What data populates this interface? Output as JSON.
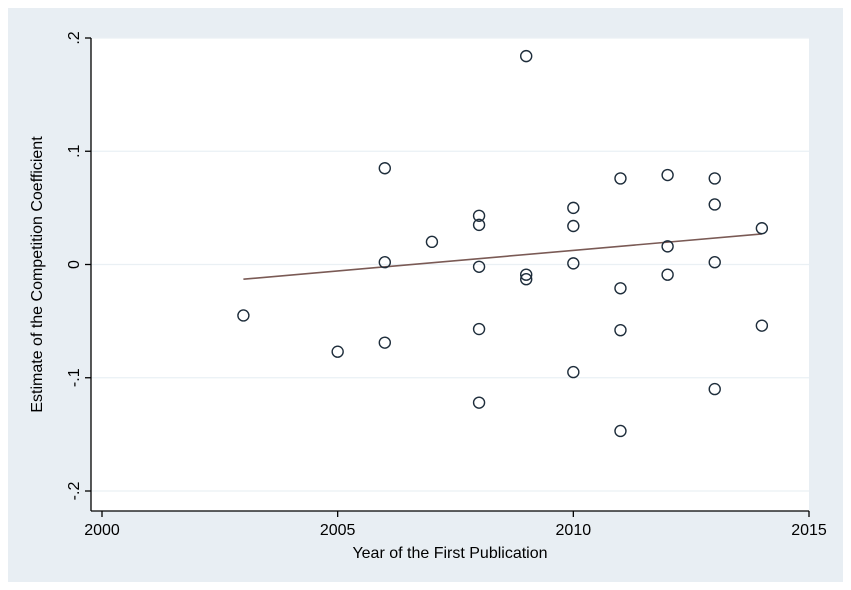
{
  "chart_data": {
    "type": "scatter",
    "title": "",
    "xlabel": "Year of the First Publication",
    "ylabel": "Estimate of the Competition Coefficient",
    "xlim": [
      2000,
      2015
    ],
    "ylim": [
      -0.2,
      0.2
    ],
    "x_ticks": [
      {
        "value": 2000,
        "label": "2000"
      },
      {
        "value": 2005,
        "label": "2005"
      },
      {
        "value": 2010,
        "label": "2010"
      },
      {
        "value": 2015,
        "label": "2015"
      }
    ],
    "y_ticks": [
      {
        "value": -0.2,
        "label": "-.2"
      },
      {
        "value": -0.1,
        "label": "-.1"
      },
      {
        "value": 0,
        "label": "0"
      },
      {
        "value": 0.1,
        "label": ".1"
      },
      {
        "value": 0.2,
        "label": ".2"
      }
    ],
    "grid": "horizontal",
    "legend": "none",
    "background_color": "#e8eef3",
    "plot_background_color": "#ffffff",
    "marker_color": "#1e2d3b",
    "fit_line_color": "#7a5a55",
    "series": [
      {
        "points": [
          {
            "x": 2003,
            "y": -0.045
          },
          {
            "x": 2005,
            "y": -0.077
          },
          {
            "x": 2006,
            "y": 0.085
          },
          {
            "x": 2006,
            "y": 0.002
          },
          {
            "x": 2006,
            "y": -0.069
          },
          {
            "x": 2007,
            "y": 0.02
          },
          {
            "x": 2008,
            "y": 0.043
          },
          {
            "x": 2008,
            "y": 0.035
          },
          {
            "x": 2008,
            "y": -0.002
          },
          {
            "x": 2008,
            "y": -0.057
          },
          {
            "x": 2008,
            "y": -0.122
          },
          {
            "x": 2009,
            "y": 0.184
          },
          {
            "x": 2009,
            "y": -0.009
          },
          {
            "x": 2009,
            "y": -0.013
          },
          {
            "x": 2010,
            "y": 0.05
          },
          {
            "x": 2010,
            "y": 0.034
          },
          {
            "x": 2010,
            "y": 0.001
          },
          {
            "x": 2010,
            "y": -0.095
          },
          {
            "x": 2011,
            "y": 0.076
          },
          {
            "x": 2011,
            "y": -0.021
          },
          {
            "x": 2011,
            "y": -0.058
          },
          {
            "x": 2011,
            "y": -0.147
          },
          {
            "x": 2012,
            "y": 0.079
          },
          {
            "x": 2012,
            "y": 0.016
          },
          {
            "x": 2012,
            "y": -0.009
          },
          {
            "x": 2013,
            "y": 0.076
          },
          {
            "x": 2013,
            "y": 0.053
          },
          {
            "x": 2013,
            "y": 0.002
          },
          {
            "x": 2013,
            "y": -0.11
          },
          {
            "x": 2014,
            "y": 0.032
          },
          {
            "x": 2014,
            "y": -0.054
          }
        ]
      }
    ],
    "fit_line": {
      "x": [
        2003,
        2014
      ],
      "y": [
        -0.013,
        0.027
      ]
    }
  }
}
